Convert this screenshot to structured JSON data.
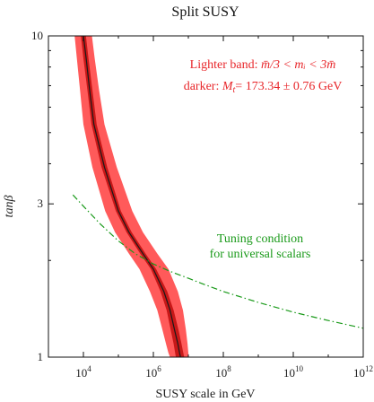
{
  "chart_data": {
    "type": "line",
    "title": "Split SUSY",
    "xlabel": "SUSY scale in GeV",
    "ylabel": "tanβ",
    "x_scale": "log",
    "y_scale": "log",
    "xlim": [
      1000,
      1000000000000.0
    ],
    "ylim": [
      1,
      10
    ],
    "x_ticks": [
      {
        "value": 10000.0,
        "base": "10",
        "exp": "4"
      },
      {
        "value": 1000000.0,
        "base": "10",
        "exp": "6"
      },
      {
        "value": 100000000.0,
        "base": "10",
        "exp": "8"
      },
      {
        "value": 10000000000.0,
        "base": "10",
        "exp": "10"
      },
      {
        "value": 1000000000000.0,
        "base": "10",
        "exp": "12"
      }
    ],
    "y_ticks": [
      {
        "value": 1,
        "label": "1"
      },
      {
        "value": 3,
        "label": "3"
      },
      {
        "value": 10,
        "label": "10"
      }
    ],
    "grid": false,
    "colors": {
      "light_band": "#ff5a5a",
      "dark_band": "#c81818",
      "central_line": "#1a1a1a",
      "tuning_line": "#1a9a1a",
      "annotation_red": "#e8262a",
      "annotation_green": "#1a9a1a"
    },
    "central_curve": {
      "x": [
        10000,
        12000,
        15000,
        20000,
        40000,
        100000,
        200000,
        500000,
        1000000,
        2000000,
        3000000,
        4000000,
        5000000,
        5600000,
        6000000
      ],
      "y": [
        10,
        8.5,
        6.8,
        5.3,
        3.9,
        2.85,
        2.45,
        2.1,
        1.88,
        1.6,
        1.4,
        1.22,
        1.1,
        1.03,
        1.0
      ]
    },
    "dark_band": {
      "x_low": [
        8500,
        10000,
        13000,
        17000,
        33000,
        85000,
        170000,
        420000,
        850000,
        1600000,
        2400000,
        3100000,
        3800000,
        4200000,
        4400000
      ],
      "x_high": [
        11800,
        14000,
        18000,
        24000,
        48000,
        118000,
        240000,
        600000,
        1200000,
        2500000,
        3800000,
        5200000,
        6400000,
        7200000,
        7600000
      ],
      "y": [
        10,
        8.5,
        6.8,
        5.3,
        3.9,
        2.85,
        2.45,
        2.1,
        1.88,
        1.6,
        1.4,
        1.22,
        1.1,
        1.03,
        1.0
      ]
    },
    "light_band": {
      "x_low": [
        5600,
        6500,
        8000,
        10000,
        18000,
        42000,
        80000,
        200000,
        400000,
        800000,
        1300000,
        1800000,
        2300000,
        2700000,
        3000000
      ],
      "x_high": [
        17500,
        21000,
        28000,
        40000,
        90000,
        250000,
        500000,
        1300000,
        2700000,
        5000000,
        7000000,
        8500000,
        9500000,
        10000000,
        10300000
      ],
      "y": [
        10,
        8.5,
        6.8,
        5.3,
        3.9,
        2.85,
        2.45,
        2.1,
        1.88,
        1.6,
        1.4,
        1.22,
        1.1,
        1.03,
        1.0
      ]
    },
    "tuning_curve": {
      "x": [
        5000,
        10000,
        30000,
        100000,
        300000,
        1000000,
        3000000,
        10000000,
        30000000,
        100000000,
        1000000000.0,
        10000000000.0,
        100000000000.0,
        1000000000000.0
      ],
      "y": [
        3.2,
        2.95,
        2.6,
        2.3,
        2.1,
        1.95,
        1.85,
        1.76,
        1.68,
        1.6,
        1.48,
        1.38,
        1.3,
        1.23
      ]
    },
    "annotations": {
      "band_light": {
        "prefix": "Lighter band: ",
        "math": "m̄/3 < mᵢ < 3m̄"
      },
      "band_dark": {
        "prefix": "darker: ",
        "var": "M",
        "sub": "t",
        "value": "= 173.34 ± 0.76 GeV"
      },
      "tuning_line1": "Tuning condition",
      "tuning_line2": "for universal scalars"
    }
  }
}
